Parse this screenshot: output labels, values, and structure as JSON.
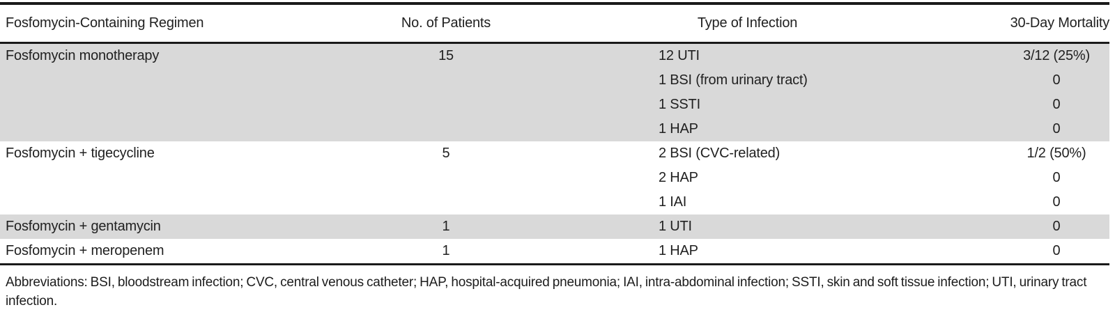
{
  "table": {
    "columns": [
      {
        "label": "Fosfomycin-Containing Regimen"
      },
      {
        "label": "No. of Patients"
      },
      {
        "label": "Type of Infection"
      },
      {
        "label": "30-Day Mortality"
      }
    ],
    "rows": [
      {
        "regimen": "Fosfomycin monotherapy",
        "patients": "15",
        "shaded": true,
        "infections": [
          {
            "type": "12 UTI",
            "mortality": "3/12 (25%)"
          },
          {
            "type": "1 BSI (from urinary tract)",
            "mortality": "0"
          },
          {
            "type": "1 SSTI",
            "mortality": "0"
          },
          {
            "type": "1 HAP",
            "mortality": "0"
          }
        ]
      },
      {
        "regimen": "Fosfomycin + tigecycline",
        "patients": "5",
        "shaded": false,
        "infections": [
          {
            "type": "2 BSI (CVC-related)",
            "mortality": "1/2 (50%)"
          },
          {
            "type": "2 HAP",
            "mortality": "0"
          },
          {
            "type": "1 IAI",
            "mortality": "0"
          }
        ]
      },
      {
        "regimen": "Fosfomycin + gentamycin",
        "patients": "1",
        "shaded": true,
        "infections": [
          {
            "type": "1 UTI",
            "mortality": "0"
          }
        ]
      },
      {
        "regimen": "Fosfomycin + meropenem",
        "patients": "1",
        "shaded": false,
        "infections": [
          {
            "type": "1 HAP",
            "mortality": "0"
          }
        ]
      }
    ],
    "footnote": "Abbreviations: BSI, bloodstream infection; CVC, central venous catheter; HAP, hospital-acquired pneumonia; IAI, intra-abdominal infection; SSTI, skin and soft tissue infection; UTI, urinary tract infection.",
    "colors": {
      "row_shade": "#d9d9d9",
      "rule": "#1a1a1a",
      "text": "#212121"
    }
  }
}
